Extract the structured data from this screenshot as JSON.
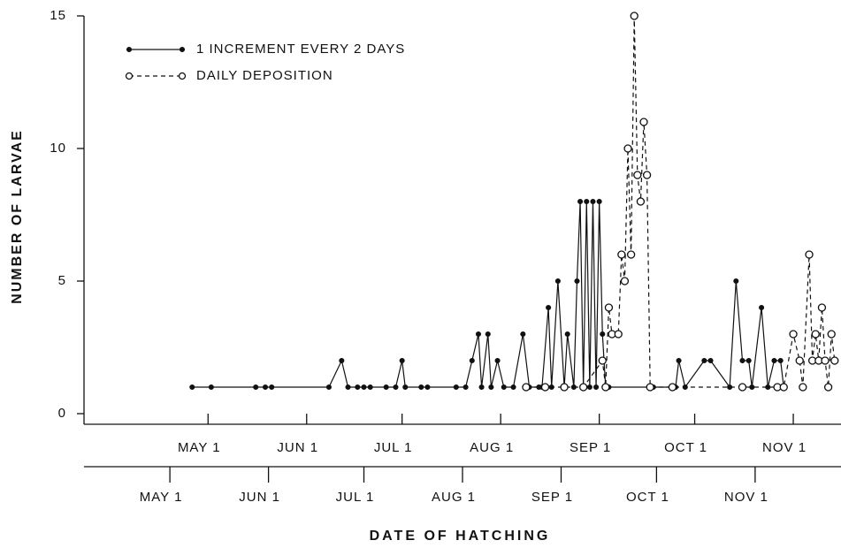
{
  "chart_data": {
    "type": "line",
    "ylabel": "NUMBER OF LARVAE",
    "xlabel": "DATE OF HATCHING",
    "ylim": [
      -0.4,
      15
    ],
    "yticks": [
      0,
      5,
      10,
      15
    ],
    "xlim": [
      82,
      320
    ],
    "xticks": [
      {
        "value": 121,
        "label": "MAY 1"
      },
      {
        "value": 152,
        "label": "JUN 1"
      },
      {
        "value": 182,
        "label": "JUL 1"
      },
      {
        "value": 213,
        "label": "AUG 1"
      },
      {
        "value": 244,
        "label": "SEP 1"
      },
      {
        "value": 274,
        "label": "OCT 1"
      },
      {
        "value": 305,
        "label": "NOV 1"
      }
    ],
    "x2lim": [
      94,
      332
    ],
    "x2ticks": [
      {
        "value": 121,
        "label": "MAY 1"
      },
      {
        "value": 152,
        "label": "JUN 1"
      },
      {
        "value": 182,
        "label": "JUL 1"
      },
      {
        "value": 213,
        "label": "AUG 1"
      },
      {
        "value": 244,
        "label": "SEP 1"
      },
      {
        "value": 274,
        "label": "OCT 1"
      },
      {
        "value": 305,
        "label": "NOV 1"
      }
    ],
    "series": [
      {
        "name": "1 INCREMENT EVERY 2 DAYS",
        "color": "#111111",
        "line_style": "solid",
        "marker": "filled",
        "x": [
          116,
          122,
          136,
          139,
          141,
          159,
          163,
          165,
          168,
          170,
          172,
          177,
          180,
          182,
          183,
          188,
          190,
          199,
          202,
          204,
          206,
          207,
          209,
          210,
          212,
          214,
          217,
          220,
          222,
          225,
          226,
          228,
          229,
          231,
          233,
          234,
          236,
          237,
          238,
          239,
          240,
          241,
          242,
          243,
          244,
          245,
          246,
          247,
          261,
          268,
          269,
          271,
          277,
          279,
          285,
          287,
          289,
          291,
          292,
          295,
          297,
          299,
          301,
          302
        ],
        "values": [
          1,
          1,
          1,
          1,
          1,
          1,
          2,
          1,
          1,
          1,
          1,
          1,
          1,
          2,
          1,
          1,
          1,
          1,
          1,
          2,
          3,
          1,
          3,
          1,
          2,
          1,
          1,
          3,
          1,
          1,
          1,
          4,
          1,
          5,
          1,
          3,
          1,
          5,
          8,
          1,
          8,
          1,
          8,
          1,
          8,
          3,
          1,
          1,
          1,
          1,
          2,
          1,
          2,
          2,
          1,
          5,
          2,
          2,
          1,
          4,
          1,
          2,
          2,
          1
        ]
      },
      {
        "name": "DAILY DEPOSITION",
        "color": "#111111",
        "line_style": "dashed",
        "marker": "open",
        "x": [
          221,
          227,
          233,
          239,
          245,
          246,
          247,
          248,
          250,
          251,
          252,
          253,
          254,
          255,
          256,
          257,
          258,
          259,
          260,
          267,
          289,
          300,
          302,
          305,
          307,
          308,
          310,
          311,
          312,
          313,
          314,
          315,
          316,
          317,
          318
        ],
        "values": [
          1,
          1,
          1,
          1,
          2,
          1,
          4,
          3,
          3,
          6,
          5,
          10,
          6,
          15,
          9,
          8,
          11,
          9,
          1,
          1,
          1,
          1,
          1,
          3,
          2,
          1,
          6,
          2,
          3,
          2,
          4,
          2,
          1,
          3,
          2
        ]
      }
    ]
  }
}
